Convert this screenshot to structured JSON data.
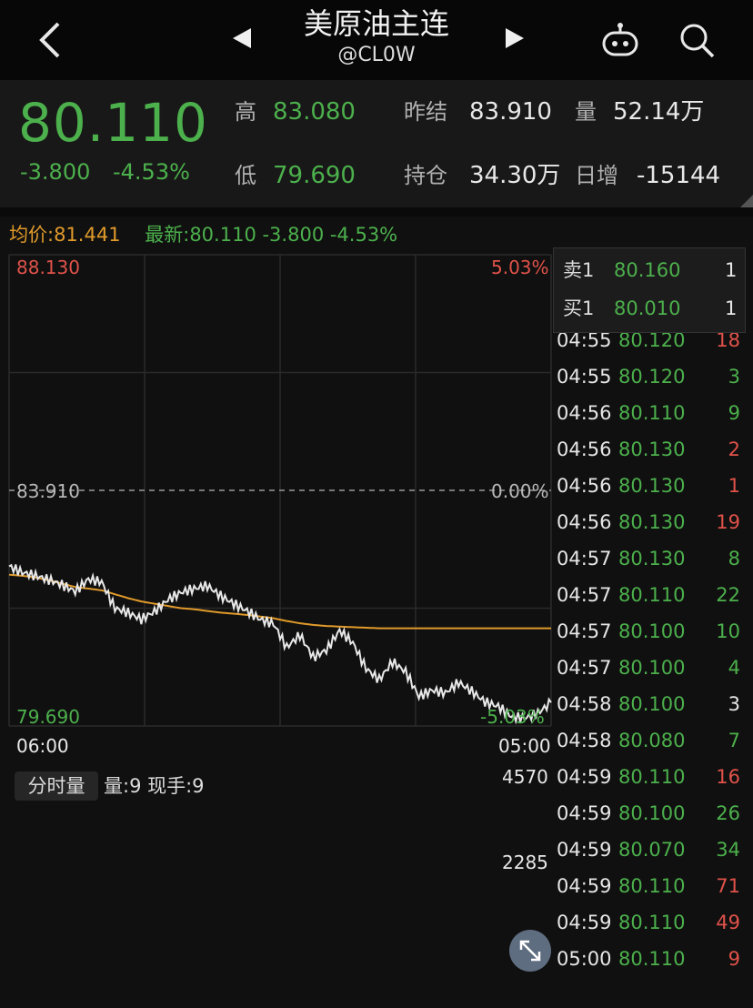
{
  "topbar": {
    "title": "美原油主连",
    "subtitle": "@CL0W",
    "icons": {
      "back": "chevron-left-icon",
      "prev": "triangle-left-icon",
      "next": "triangle-right-icon",
      "robot": "robot-icon",
      "search": "search-icon"
    }
  },
  "quote": {
    "price": "80.110",
    "change": "-3.800",
    "change_pct": "-4.53%",
    "high_label": "高",
    "high": "83.080",
    "low_label": "低",
    "low": "79.690",
    "prev_close_label": "昨结",
    "prev_close": "83.910",
    "volume_label": "量",
    "volume": "52.14万",
    "open_interest_label": "持仓",
    "open_interest": "34.30万",
    "daily_change_label": "日增",
    "daily_change": "-15144"
  },
  "info_line": {
    "avg": "均价:81.441",
    "latest": "最新:80.110 -3.800 -4.53%"
  },
  "chart_labels": {
    "top_price": "88.130",
    "top_pct": "5.03%",
    "mid_price": "83.910",
    "mid_pct": "0.00%",
    "bot_price": "79.690",
    "bot_pct": "-5.03%",
    "start_time": "06:00",
    "end_time": "05:00"
  },
  "order_book": [
    {
      "label": "卖1",
      "price": "80.160",
      "qty": "1"
    },
    {
      "label": "买1",
      "price": "80.010",
      "qty": "1"
    }
  ],
  "ticks": [
    {
      "time": "04:55",
      "price": "80.120",
      "vol": "18",
      "dir": "up"
    },
    {
      "time": "04:55",
      "price": "80.120",
      "vol": "3",
      "dir": "dn"
    },
    {
      "time": "04:56",
      "price": "80.110",
      "vol": "9",
      "dir": "dn"
    },
    {
      "time": "04:56",
      "price": "80.130",
      "vol": "2",
      "dir": "up"
    },
    {
      "time": "04:56",
      "price": "80.130",
      "vol": "1",
      "dir": "up"
    },
    {
      "time": "04:56",
      "price": "80.130",
      "vol": "19",
      "dir": "up"
    },
    {
      "time": "04:57",
      "price": "80.130",
      "vol": "8",
      "dir": "dn"
    },
    {
      "time": "04:57",
      "price": "80.110",
      "vol": "22",
      "dir": "dn"
    },
    {
      "time": "04:57",
      "price": "80.100",
      "vol": "10",
      "dir": "dn"
    },
    {
      "time": "04:57",
      "price": "80.100",
      "vol": "4",
      "dir": "dn"
    },
    {
      "time": "04:58",
      "price": "80.100",
      "vol": "3",
      "dir": "flat"
    },
    {
      "time": "04:58",
      "price": "80.080",
      "vol": "7",
      "dir": "dn"
    },
    {
      "time": "04:59",
      "price": "80.110",
      "vol": "16",
      "dir": "up"
    },
    {
      "time": "04:59",
      "price": "80.100",
      "vol": "26",
      "dir": "dn"
    },
    {
      "time": "04:59",
      "price": "80.070",
      "vol": "34",
      "dir": "dn"
    },
    {
      "time": "04:59",
      "price": "80.110",
      "vol": "71",
      "dir": "up"
    },
    {
      "time": "04:59",
      "price": "80.110",
      "vol": "49",
      "dir": "up"
    },
    {
      "time": "05:00",
      "price": "80.110",
      "vol": "9",
      "dir": "up"
    }
  ],
  "volume": {
    "tab_label": "分时量",
    "info": "量:9 现手:9",
    "max_label": "4570",
    "mid_label": "2285",
    "expand_icon": "expand-arrows-icon"
  },
  "colors": {
    "up": "#e0524a",
    "down": "#4cb04c",
    "avg_line": "#e09a2a",
    "price_line": "#e8e8e8"
  },
  "chart_data": {
    "type": "line",
    "price_range": [
      79.69,
      88.13
    ],
    "prev_close": 83.91,
    "series": [
      {
        "name": "price",
        "values": [
          82.55,
          82.44,
          82.38,
          82.31,
          82.22,
          82.1,
          82.32,
          82.27,
          81.8,
          81.72,
          81.6,
          81.74,
          81.95,
          82.08,
          82.15,
          82.2,
          82.02,
          81.88,
          81.75,
          81.6,
          81.52,
          81.1,
          81.32,
          80.92,
          81.05,
          81.4,
          81.18,
          80.72,
          80.52,
          80.84,
          80.66,
          80.22,
          80.33,
          80.28,
          80.47,
          80.31,
          80.12,
          80.04,
          79.86,
          79.83,
          79.92,
          80.11
        ]
      },
      {
        "name": "avg",
        "values": [
          82.4,
          82.38,
          82.35,
          82.3,
          82.24,
          82.18,
          82.15,
          82.12,
          82.05,
          81.98,
          81.92,
          81.88,
          81.84,
          81.8,
          81.78,
          81.75,
          81.72,
          81.7,
          81.68,
          81.65,
          81.62,
          81.57,
          81.53,
          81.5,
          81.48,
          81.47,
          81.46,
          81.45,
          81.44,
          81.44,
          81.44,
          81.44,
          81.44,
          81.44,
          81.44,
          81.44,
          81.44,
          81.44,
          81.44,
          81.44,
          81.44,
          81.44
        ]
      }
    ],
    "volume_max": 4570
  }
}
